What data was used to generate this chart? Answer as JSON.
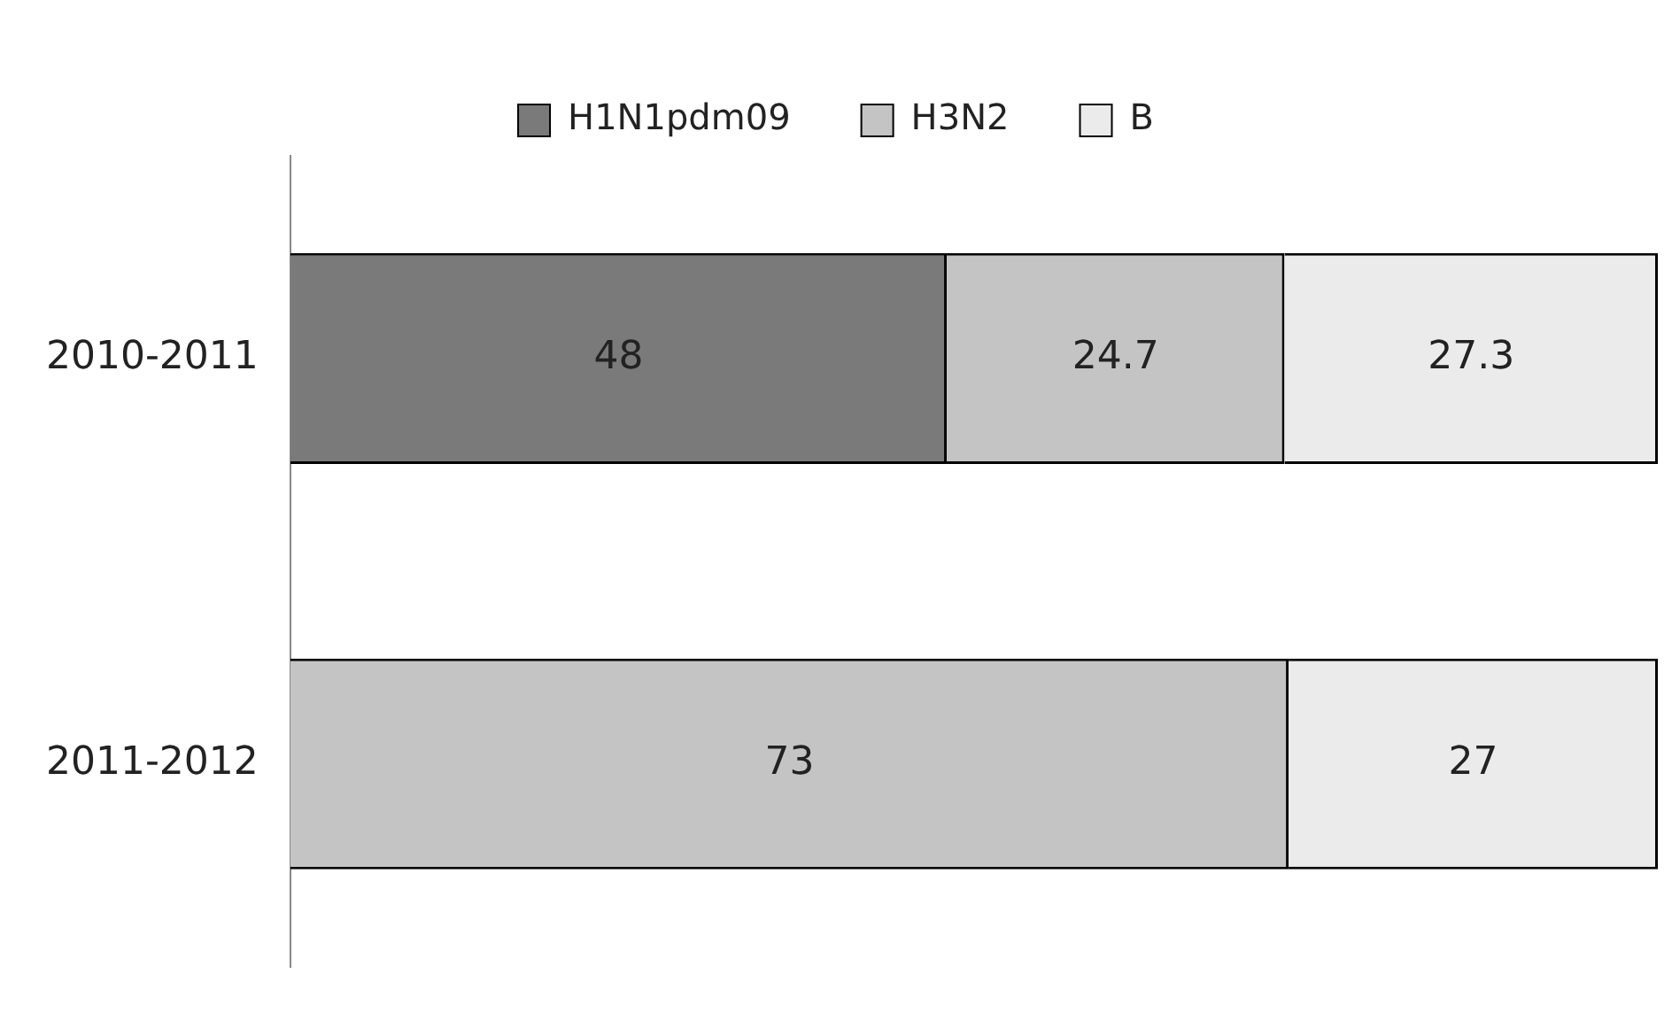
{
  "chart_data": {
    "type": "bar",
    "orientation": "horizontal",
    "stacked": true,
    "categories": [
      "2010-2011",
      "2011-2012"
    ],
    "series": [
      {
        "name": "H1N1pdm09",
        "color": "#7a7a7a",
        "values": [
          48,
          null
        ]
      },
      {
        "name": "H3N2",
        "color": "#c4c4c4",
        "values": [
          24.7,
          73
        ]
      },
      {
        "name": "B",
        "color": "#ebebeb",
        "values": [
          27.3,
          27
        ]
      }
    ],
    "data_labels": true,
    "legend": "top",
    "grid": false,
    "tick_labels": "y"
  }
}
